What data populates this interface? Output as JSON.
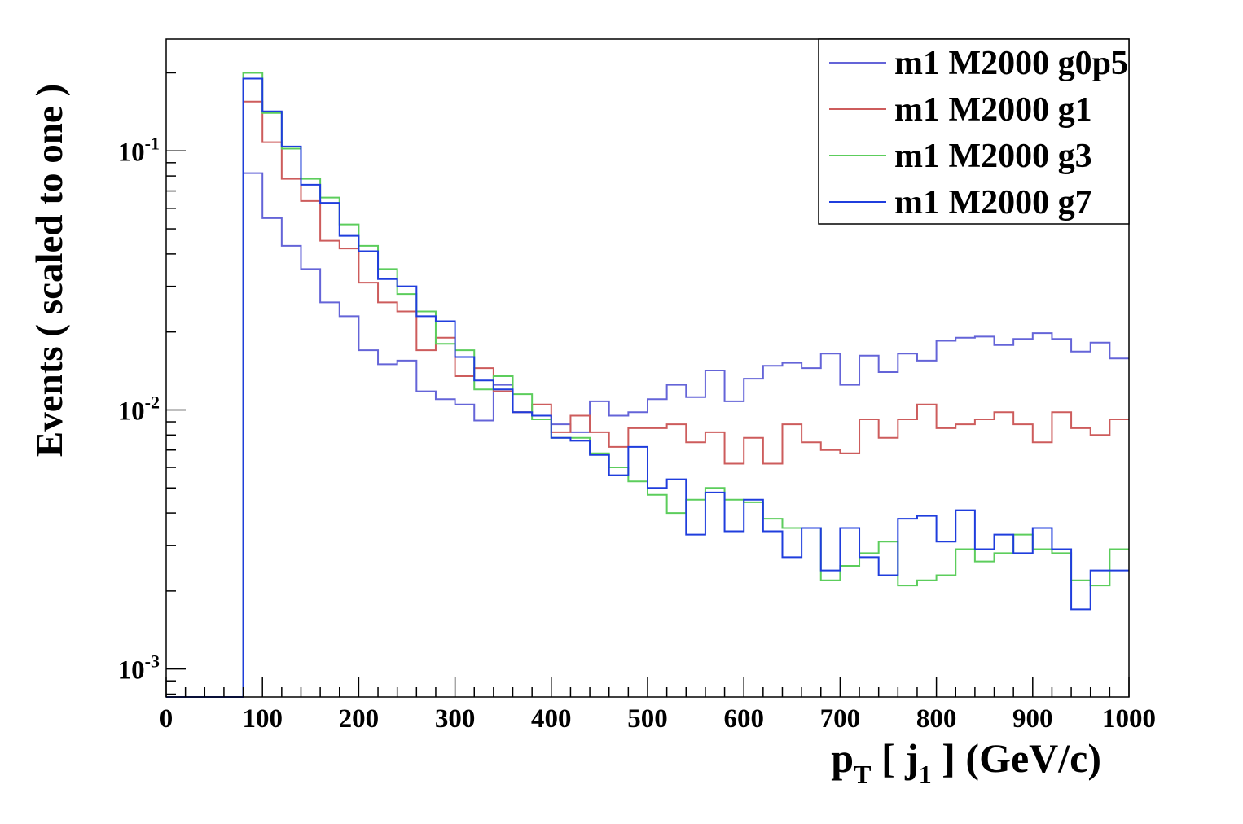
{
  "chart_data": {
    "type": "line",
    "step": true,
    "title": "",
    "xlabel": {
      "main": "p",
      "sub1": "T",
      "mid": " [ j",
      "sub2": "1",
      "tail": " ] (GeV/c)"
    },
    "ylabel": "Events  ( scaled to one )",
    "xlim": [
      0,
      1000
    ],
    "ylim": [
      0.00078,
      0.27
    ],
    "yscale": "log",
    "grid": false,
    "legend_position": "top-right",
    "x_ticks": [
      "0",
      "100",
      "200",
      "300",
      "400",
      "500",
      "600",
      "700",
      "800",
      "900",
      "1000"
    ],
    "y_ticks": [
      {
        "base": "10",
        "exp": "-1"
      },
      {
        "base": "10",
        "exp": "-2"
      },
      {
        "base": "10",
        "exp": "-3"
      }
    ],
    "bin_edges": [
      0,
      20,
      40,
      60,
      80,
      100,
      120,
      140,
      160,
      180,
      200,
      220,
      240,
      260,
      280,
      300,
      320,
      340,
      360,
      380,
      400,
      420,
      440,
      460,
      480,
      500,
      520,
      540,
      560,
      580,
      600,
      620,
      640,
      660,
      680,
      700,
      720,
      740,
      760,
      780,
      800,
      820,
      840,
      860,
      880,
      900,
      920,
      940,
      960,
      980,
      1000
    ],
    "series": [
      {
        "name": "m1 M2000 g0p5",
        "color": "#6464d8",
        "values": [
          0,
          0,
          0,
          0,
          0.082,
          0.055,
          0.043,
          0.035,
          0.026,
          0.023,
          0.017,
          0.015,
          0.0155,
          0.0118,
          0.011,
          0.0105,
          0.0091,
          0.0125,
          0.0098,
          0.0095,
          0.0088,
          0.0082,
          0.0108,
          0.0095,
          0.0098,
          0.011,
          0.0125,
          0.0112,
          0.0142,
          0.0108,
          0.0132,
          0.0148,
          0.0152,
          0.0145,
          0.0165,
          0.0125,
          0.0162,
          0.014,
          0.0165,
          0.0155,
          0.0185,
          0.019,
          0.0192,
          0.0178,
          0.0188,
          0.0198,
          0.0188,
          0.0168,
          0.0182,
          0.0158
        ]
      },
      {
        "name": "m1 M2000 g1",
        "color": "#cd5c5c",
        "values": [
          0,
          0,
          0,
          0,
          0.155,
          0.108,
          0.078,
          0.064,
          0.045,
          0.042,
          0.031,
          0.026,
          0.024,
          0.017,
          0.019,
          0.0135,
          0.0145,
          0.0118,
          0.0098,
          0.0105,
          0.0082,
          0.0095,
          0.0082,
          0.0072,
          0.0085,
          0.0085,
          0.0088,
          0.0075,
          0.0082,
          0.0062,
          0.0078,
          0.0062,
          0.0088,
          0.0075,
          0.007,
          0.0068,
          0.0092,
          0.0078,
          0.0092,
          0.0105,
          0.0085,
          0.0088,
          0.0092,
          0.0098,
          0.0088,
          0.0075,
          0.0098,
          0.0085,
          0.008,
          0.0092
        ]
      },
      {
        "name": "m1 M2000 g3",
        "color": "#5ccd5c",
        "values": [
          0,
          0,
          0,
          0,
          0.2,
          0.14,
          0.102,
          0.078,
          0.066,
          0.052,
          0.043,
          0.035,
          0.028,
          0.024,
          0.018,
          0.017,
          0.012,
          0.0135,
          0.0115,
          0.0092,
          0.0078,
          0.0078,
          0.0068,
          0.006,
          0.0053,
          0.0047,
          0.004,
          0.0045,
          0.005,
          0.0045,
          0.0044,
          0.0038,
          0.0035,
          0.0035,
          0.0022,
          0.0025,
          0.0028,
          0.0031,
          0.0021,
          0.0022,
          0.0023,
          0.0029,
          0.0026,
          0.0028,
          0.0033,
          0.0029,
          0.0028,
          0.0022,
          0.0021,
          0.0029
        ]
      },
      {
        "name": "m1 M2000 g7",
        "color": "#1f3ddd",
        "values": [
          0,
          0,
          0,
          0,
          0.19,
          0.142,
          0.104,
          0.074,
          0.063,
          0.047,
          0.041,
          0.032,
          0.03,
          0.023,
          0.022,
          0.016,
          0.013,
          0.012,
          0.0098,
          0.0095,
          0.0078,
          0.0076,
          0.0067,
          0.0056,
          0.0072,
          0.005,
          0.0054,
          0.0033,
          0.0048,
          0.0034,
          0.0045,
          0.0034,
          0.0027,
          0.0035,
          0.0024,
          0.0035,
          0.0027,
          0.0023,
          0.0038,
          0.0039,
          0.0031,
          0.0041,
          0.0029,
          0.0033,
          0.0028,
          0.0035,
          0.0029,
          0.0017,
          0.0024,
          0.0024
        ]
      }
    ]
  }
}
